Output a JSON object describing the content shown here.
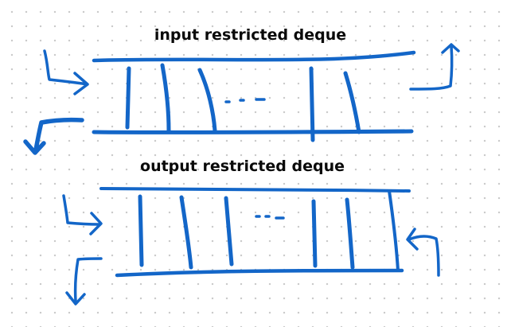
{
  "diagram": {
    "top_deque": {
      "title": "input restricted deque",
      "ellipsis": "· · ·"
    },
    "bottom_deque": {
      "title": "output restricted deque",
      "ellipsis": "· · ·"
    },
    "colors": {
      "ink": "#1366c8",
      "text": "#0a0a0a",
      "dot_grid": "#c9c9c9"
    }
  }
}
